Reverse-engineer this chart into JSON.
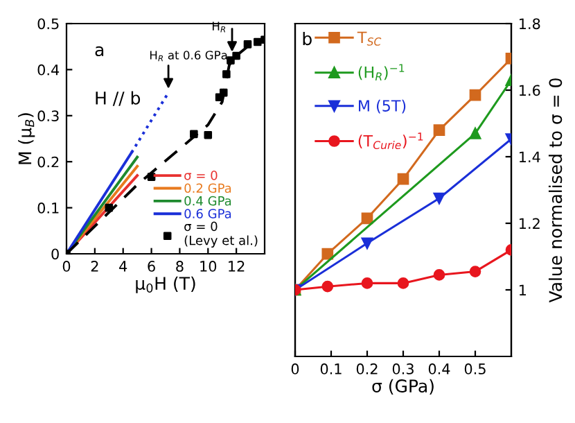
{
  "chart_data": [
    {
      "type": "line",
      "xlabel": "μ$_{0}$H (T)",
      "ylabel": "M (μ$_{B}$)",
      "xlim": [
        0,
        14
      ],
      "xticks": [
        0,
        2,
        4,
        6,
        8,
        10,
        12
      ],
      "ylim": [
        0,
        0.5
      ],
      "yticks": [
        0,
        0.1,
        0.2,
        0.3,
        0.4,
        0.5
      ],
      "grid": false,
      "legend": "bottom right",
      "tick_labels": true,
      "annotations": [
        "a",
        "H // b",
        {
          "text": "H$_{R}$ at 0.6 GPa",
          "x": 7.2,
          "y": 0.35
        },
        {
          "text": "H$_{R}$",
          "x": 11.7,
          "y": 0.43
        }
      ],
      "series": [
        {
          "name": "σ = 0",
          "color": "#e8312f",
          "x": [
            0,
            5
          ],
          "values": [
            0,
            0.17
          ],
          "line_style": "solid",
          "marker": "none"
        },
        {
          "name": "0.2 GPa",
          "color": "#e87a1e",
          "x": [
            0,
            5
          ],
          "values": [
            0,
            0.19
          ],
          "line_style": "solid",
          "marker": "none"
        },
        {
          "name": "0.4 GPa",
          "color": "#1e8a2e",
          "x": [
            0,
            5
          ],
          "values": [
            0,
            0.21
          ],
          "line_style": "solid",
          "marker": "none"
        },
        {
          "name": "0.6 GPa",
          "color": "#1a2fd8",
          "x": [
            0,
            4.6
          ],
          "values": [
            0,
            0.22
          ],
          "line_style": "solid",
          "marker": "none"
        },
        {
          "color": "#1a2fd8",
          "x": [
            4.6,
            7.2
          ],
          "values": [
            0.22,
            0.35
          ],
          "line_style": "dotted",
          "marker": "none"
        },
        {
          "color": "#000000",
          "x": [
            0,
            5,
            10,
            11,
            11.5,
            12,
            13,
            14
          ],
          "values": [
            0,
            0.15,
            0.28,
            0.33,
            0.41,
            0.43,
            0.455,
            0.465
          ],
          "line_style": "dashed",
          "marker": "none"
        },
        {
          "name": "σ = 0\n(Levy et al.)",
          "type": "scatter",
          "color": "#000000",
          "marker": "square",
          "x": [
            0,
            3,
            6,
            9,
            10,
            10.8,
            11.1,
            11.3,
            11.6,
            12,
            12.8,
            13.5,
            14
          ],
          "values": [
            0,
            0.1,
            0.167,
            0.26,
            0.258,
            0.34,
            0.35,
            0.39,
            0.42,
            0.43,
            0.455,
            0.46,
            0.465
          ]
        }
      ]
    },
    {
      "type": "line",
      "xlabel": "σ (GPa)",
      "y2label": "Value normalised to σ = 0",
      "xlim": [
        0,
        0.6
      ],
      "xticks": [
        0,
        0.1,
        0.2,
        0.3,
        0.4,
        0.5
      ],
      "y2lim": [
        0.8,
        1.8
      ],
      "y2ticks": [
        1,
        1.2,
        1.4,
        1.6,
        1.8
      ],
      "grid": false,
      "legend": "top left",
      "annotations": [
        "b"
      ],
      "series": [
        {
          "name": "T$_{SC}$",
          "color": "#d2691e",
          "marker": "square",
          "line_style": "solid",
          "axis": "y2",
          "x": [
            0,
            0.09,
            0.2,
            0.3,
            0.4,
            0.5,
            0.6
          ],
          "values": [
            1,
            1.108,
            1.215,
            1.333,
            1.48,
            1.585,
            1.695
          ]
        },
        {
          "name": "(H$_{R}$)$^{−1}$",
          "color": "#1e9a1e",
          "marker": "triangle",
          "line_style": "solid",
          "axis": "y2",
          "x": [
            0,
            0.5,
            0.6
          ],
          "values": [
            1,
            1.47,
            1.63
          ]
        },
        {
          "name": "M (5T)",
          "color": "#1a2fd8",
          "marker": "triangle_down",
          "line_style": "solid",
          "axis": "y2",
          "x": [
            0,
            0.2,
            0.4,
            0.6
          ],
          "values": [
            1,
            1.14,
            1.275,
            1.453
          ]
        },
        {
          "name": "(T$_{Curie}$)$^{−1}$",
          "color": "#e8161e",
          "marker": "circle",
          "line_style": "solid",
          "axis": "y2",
          "x": [
            0,
            0.09,
            0.2,
            0.3,
            0.4,
            0.5,
            0.6
          ],
          "values": [
            1,
            1.01,
            1.02,
            1.02,
            1.045,
            1.055,
            1.12
          ]
        }
      ]
    }
  ]
}
